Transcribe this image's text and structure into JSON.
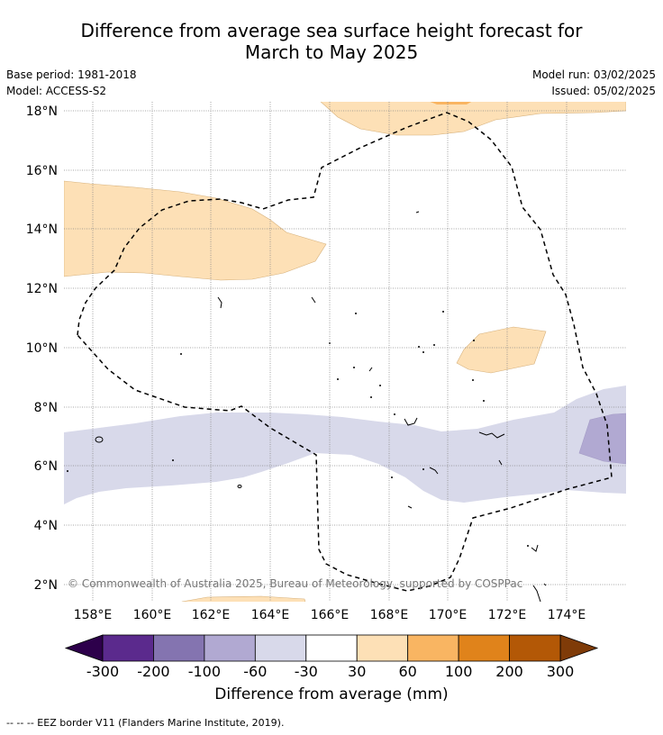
{
  "title": {
    "line1": "Difference from average sea surface height forecast for",
    "line2": "March to May 2025"
  },
  "metadata": {
    "base_period": "Base period: 1981-2018",
    "model": "Model: ACCESS-S2",
    "model_run": "Model run: 03/02/2025",
    "issued": "Issued: 05/02/2025"
  },
  "map": {
    "lat_labels": [
      "2°N",
      "4°N",
      "6°N",
      "8°N",
      "10°N",
      "12°N",
      "14°N",
      "16°N",
      "18°N"
    ],
    "lon_labels": [
      "158°E",
      "160°E",
      "162°E",
      "164°E",
      "166°E",
      "168°E",
      "170°E",
      "172°E",
      "174°E"
    ],
    "copyright": "© Commonwealth of Australia 2025, Bureau of Meteorology, supported by COSPPac",
    "colors": {
      "pos_30_60": "#fde0b6",
      "pos_60_100": "#f9b562",
      "neg_60_30": "#d8d9ea",
      "neg_100_60": "#b1a9d2",
      "gridline": "#888888",
      "border": "#000000"
    }
  },
  "colorbar": {
    "title": "Difference from average (mm)",
    "ticks": [
      "-300",
      "-200",
      "-100",
      "-60",
      "-30",
      "30",
      "60",
      "100",
      "200",
      "300"
    ],
    "colors": [
      "#5b2a8d",
      "#8474b0",
      "#b1a9d2",
      "#d8d9ea",
      "#ffffff",
      "#fde0b6",
      "#f9b562",
      "#e0831b",
      "#b35806"
    ],
    "under_color": "#2d004b",
    "over_color": "#7f3b08"
  },
  "footnote": "--  --  -- EEZ border V11 (Flanders Marine Institute, 2019)."
}
